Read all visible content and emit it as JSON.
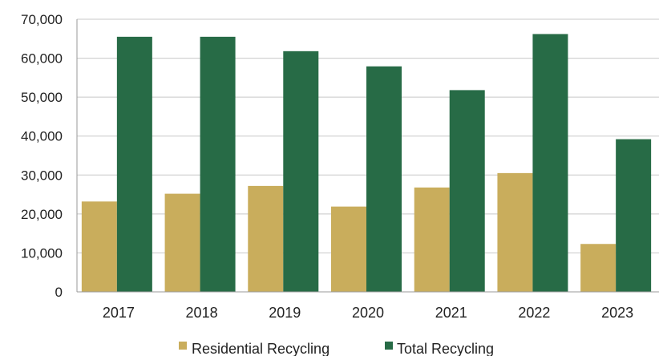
{
  "chart_data": {
    "type": "bar",
    "title": "",
    "xlabel": "",
    "ylabel": "",
    "categories": [
      "2017",
      "2018",
      "2019",
      "2020",
      "2021",
      "2022",
      "2023"
    ],
    "series": [
      {
        "name": "Residential Recycling",
        "color": "#C9AD5C",
        "values": [
          23200,
          25200,
          27200,
          21900,
          26800,
          30500,
          12300
        ]
      },
      {
        "name": "Total Recycling",
        "color": "#276B46",
        "values": [
          65500,
          65500,
          61800,
          57900,
          51800,
          66200,
          39200
        ]
      }
    ],
    "ylim": [
      0,
      70000
    ],
    "yticks": [
      "0",
      "10,000",
      "20,000",
      "30,000",
      "40,000",
      "50,000",
      "60,000",
      "70,000"
    ],
    "grid": true,
    "legend_position": "bottom"
  },
  "colors": {
    "gridline": "#C8C8C8",
    "axis": "#9A9A9A"
  }
}
